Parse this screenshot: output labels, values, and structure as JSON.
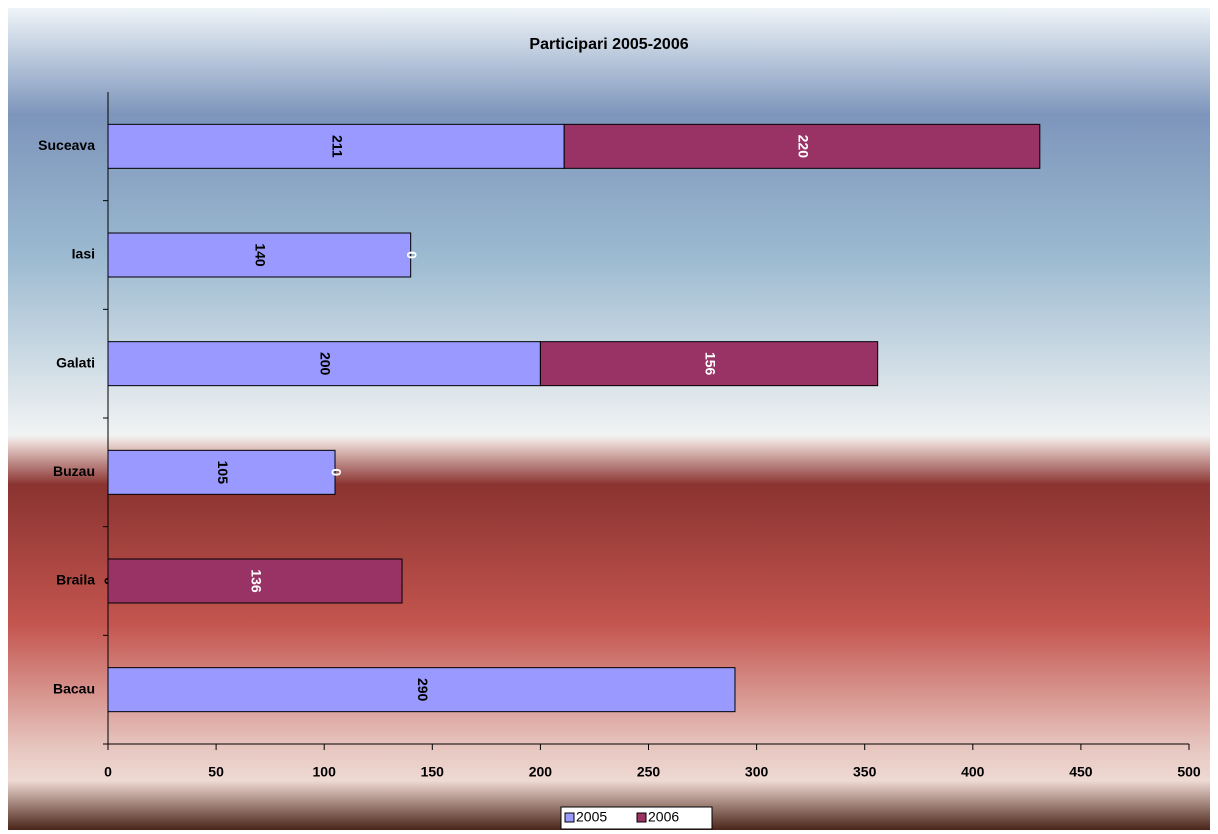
{
  "chart_data": {
    "type": "bar",
    "orientation": "horizontal",
    "stacked": true,
    "title": "Participari 2005-2006",
    "categories": [
      "Bacau",
      "Braila",
      "Buzau",
      "Galati",
      "Iasi",
      "Suceava"
    ],
    "series": [
      {
        "name": "2005",
        "color": "#9999ff",
        "values": [
          290,
          0,
          105,
          200,
          140,
          211
        ]
      },
      {
        "name": "2006",
        "color": "#993366",
        "values": [
          null,
          136,
          0,
          156,
          0,
          220
        ]
      }
    ],
    "xlim": [
      0,
      500
    ],
    "xticks": [
      0,
      50,
      100,
      150,
      200,
      250,
      300,
      350,
      400,
      450,
      500
    ],
    "legend": "bottom"
  }
}
